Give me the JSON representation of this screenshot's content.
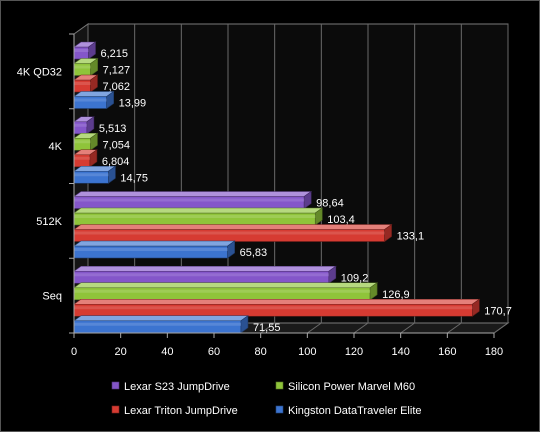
{
  "chart_data": {
    "type": "bar",
    "orientation": "horizontal",
    "three_d": true,
    "categories": [
      "4K QD32",
      "4K",
      "512K",
      "Seq"
    ],
    "series": [
      {
        "name": "Lexar S23 JumpDrive",
        "color": "#8456c9",
        "values": [
          6.215,
          5.513,
          98.64,
          109.2
        ],
        "labels": [
          "6,215",
          "5,513",
          "98,64",
          "109,2"
        ]
      },
      {
        "name": "Silicon Power Marvel M60",
        "color": "#8fc43a",
        "values": [
          7.127,
          7.054,
          103.4,
          126.9
        ],
        "labels": [
          "7,127",
          "7,054",
          "103,4",
          "126,9"
        ]
      },
      {
        "name": "Lexar Triton JumpDrive",
        "color": "#d63b32",
        "values": [
          7.062,
          6.804,
          133.1,
          170.7
        ],
        "labels": [
          "7,062",
          "6,804",
          "133,1",
          "170,7"
        ]
      },
      {
        "name": "Kingston DataTraveler  Elite",
        "color": "#3c74d0",
        "values": [
          13.99,
          14.75,
          65.83,
          71.55
        ],
        "labels": [
          "13,99",
          "14,75",
          "65,83",
          "71,55"
        ]
      }
    ],
    "xlim": [
      0,
      180
    ],
    "xticks": [
      "0",
      "20",
      "40",
      "60",
      "80",
      "100",
      "120",
      "140",
      "160",
      "180"
    ],
    "grid": true,
    "legend_position": "bottom",
    "title": "",
    "xlabel": "",
    "ylabel": ""
  }
}
